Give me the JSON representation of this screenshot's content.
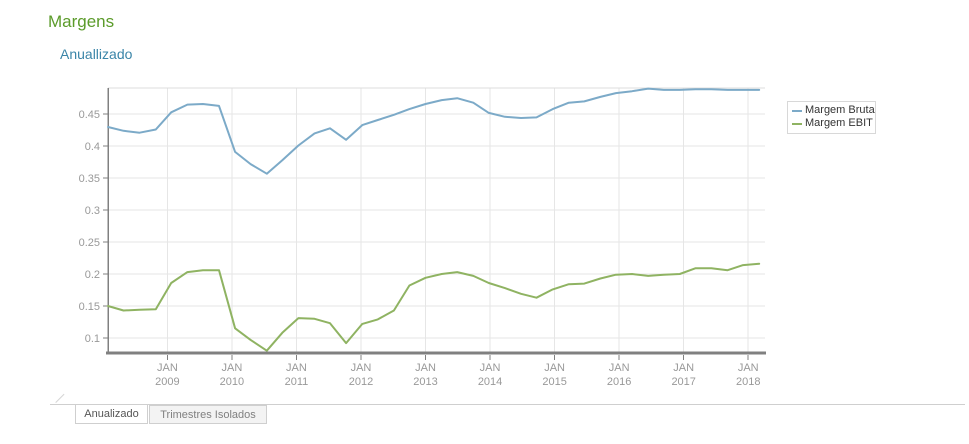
{
  "colors": {
    "title": "#5b9b2a",
    "subtitle": "#3a85a8",
    "grid": "#e6e6e6",
    "frame": "#dcdcdc",
    "axis": "#808080",
    "tick_label": "#999999",
    "margem_bruta": "#7caac8",
    "margem_ebit": "#8fb362"
  },
  "tabs": [
    {
      "label": "Anualizado",
      "active": true
    },
    {
      "label": "Trimestres Isolados",
      "active": false
    }
  ],
  "chart_data": {
    "type": "line",
    "title": "Margens",
    "subtitle": "Anuallizado",
    "xlabel": "",
    "ylabel": "",
    "grid": true,
    "legend_position": "right-outside-top",
    "xlim": [
      2008.08,
      2018.26
    ],
    "ylim": [
      0.078,
      0.491
    ],
    "x_ticks": [
      {
        "t": 2009,
        "month": "JAN",
        "year": "2009"
      },
      {
        "t": 2010,
        "month": "JAN",
        "year": "2010"
      },
      {
        "t": 2011,
        "month": "JAN",
        "year": "2011"
      },
      {
        "t": 2012,
        "month": "JAN",
        "year": "2012"
      },
      {
        "t": 2013,
        "month": "JAN",
        "year": "2013"
      },
      {
        "t": 2014,
        "month": "JAN",
        "year": "2014"
      },
      {
        "t": 2015,
        "month": "JAN",
        "year": "2015"
      },
      {
        "t": 2016,
        "month": "JAN",
        "year": "2016"
      },
      {
        "t": 2017,
        "month": "JAN",
        "year": "2017"
      },
      {
        "t": 2018,
        "month": "JAN",
        "year": "2018"
      }
    ],
    "y_ticks": [
      {
        "v": 0.1,
        "label": "0.1"
      },
      {
        "v": 0.15,
        "label": "0.15"
      },
      {
        "v": 0.2,
        "label": "0.2"
      },
      {
        "v": 0.25,
        "label": "0.25"
      },
      {
        "v": 0.3,
        "label": "0.3"
      },
      {
        "v": 0.35,
        "label": "0.35"
      },
      {
        "v": 0.4,
        "label": "0.4"
      },
      {
        "v": 0.45,
        "label": "0.45"
      }
    ],
    "series": [
      {
        "name": "Margem Bruta",
        "color": "#7caac8",
        "points": [
          [
            2008.08,
            0.43
          ],
          [
            2008.32,
            0.424
          ],
          [
            2008.57,
            0.421
          ],
          [
            2008.82,
            0.426
          ],
          [
            2009.06,
            0.453
          ],
          [
            2009.31,
            0.465
          ],
          [
            2009.55,
            0.466
          ],
          [
            2009.8,
            0.463
          ],
          [
            2010.05,
            0.391
          ],
          [
            2010.29,
            0.372
          ],
          [
            2010.54,
            0.357
          ],
          [
            2010.78,
            0.378
          ],
          [
            2011.03,
            0.401
          ],
          [
            2011.28,
            0.42
          ],
          [
            2011.52,
            0.428
          ],
          [
            2011.77,
            0.41
          ],
          [
            2012.02,
            0.433
          ],
          [
            2012.26,
            0.441
          ],
          [
            2012.51,
            0.449
          ],
          [
            2012.75,
            0.458
          ],
          [
            2013.0,
            0.466
          ],
          [
            2013.25,
            0.472
          ],
          [
            2013.49,
            0.475
          ],
          [
            2013.74,
            0.468
          ],
          [
            2013.98,
            0.452
          ],
          [
            2014.23,
            0.446
          ],
          [
            2014.48,
            0.444
          ],
          [
            2014.72,
            0.445
          ],
          [
            2014.97,
            0.458
          ],
          [
            2015.22,
            0.468
          ],
          [
            2015.46,
            0.47
          ],
          [
            2015.71,
            0.477
          ],
          [
            2015.95,
            0.483
          ],
          [
            2016.2,
            0.486
          ],
          [
            2016.45,
            0.49
          ],
          [
            2016.69,
            0.488
          ],
          [
            2016.94,
            0.488
          ],
          [
            2017.18,
            0.489
          ],
          [
            2017.43,
            0.489
          ],
          [
            2017.68,
            0.488
          ],
          [
            2017.92,
            0.488
          ],
          [
            2018.17,
            0.488
          ]
        ]
      },
      {
        "name": "Margem EBIT",
        "color": "#8fb362",
        "points": [
          [
            2008.08,
            0.15
          ],
          [
            2008.32,
            0.143
          ],
          [
            2008.57,
            0.144
          ],
          [
            2008.82,
            0.145
          ],
          [
            2009.06,
            0.186
          ],
          [
            2009.31,
            0.203
          ],
          [
            2009.55,
            0.206
          ],
          [
            2009.8,
            0.206
          ],
          [
            2010.05,
            0.115
          ],
          [
            2010.29,
            0.097
          ],
          [
            2010.54,
            0.08
          ],
          [
            2010.78,
            0.108
          ],
          [
            2011.03,
            0.131
          ],
          [
            2011.28,
            0.13
          ],
          [
            2011.52,
            0.123
          ],
          [
            2011.77,
            0.092
          ],
          [
            2012.02,
            0.122
          ],
          [
            2012.26,
            0.129
          ],
          [
            2012.51,
            0.143
          ],
          [
            2012.75,
            0.182
          ],
          [
            2013.0,
            0.194
          ],
          [
            2013.25,
            0.2
          ],
          [
            2013.49,
            0.203
          ],
          [
            2013.74,
            0.197
          ],
          [
            2013.98,
            0.186
          ],
          [
            2014.23,
            0.178
          ],
          [
            2014.48,
            0.169
          ],
          [
            2014.72,
            0.163
          ],
          [
            2014.97,
            0.176
          ],
          [
            2015.22,
            0.184
          ],
          [
            2015.46,
            0.185
          ],
          [
            2015.71,
            0.193
          ],
          [
            2015.95,
            0.199
          ],
          [
            2016.2,
            0.2
          ],
          [
            2016.45,
            0.197
          ],
          [
            2016.69,
            0.199
          ],
          [
            2016.94,
            0.2
          ],
          [
            2017.18,
            0.209
          ],
          [
            2017.43,
            0.209
          ],
          [
            2017.68,
            0.206
          ],
          [
            2017.92,
            0.214
          ],
          [
            2018.17,
            0.216
          ]
        ]
      }
    ]
  }
}
